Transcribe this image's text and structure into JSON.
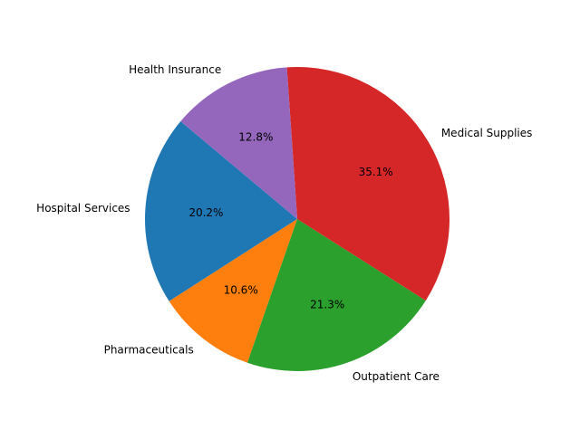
{
  "chart_data": {
    "type": "pie",
    "labels": [
      "Hospital Services",
      "Pharmaceuticals",
      "Outpatient Care",
      "Medical Supplies",
      "Health Insurance"
    ],
    "values": [
      20.2,
      10.6,
      21.3,
      35.1,
      12.8
    ],
    "pct_labels": [
      "20.2%",
      "10.6%",
      "21.3%",
      "35.1%",
      "12.8%"
    ],
    "colors": [
      "#1f77b4",
      "#ff7f0e",
      "#2ca02c",
      "#d62728",
      "#9467bd"
    ],
    "start_angle_deg": 140,
    "direction": "counterclockwise",
    "title": ""
  }
}
